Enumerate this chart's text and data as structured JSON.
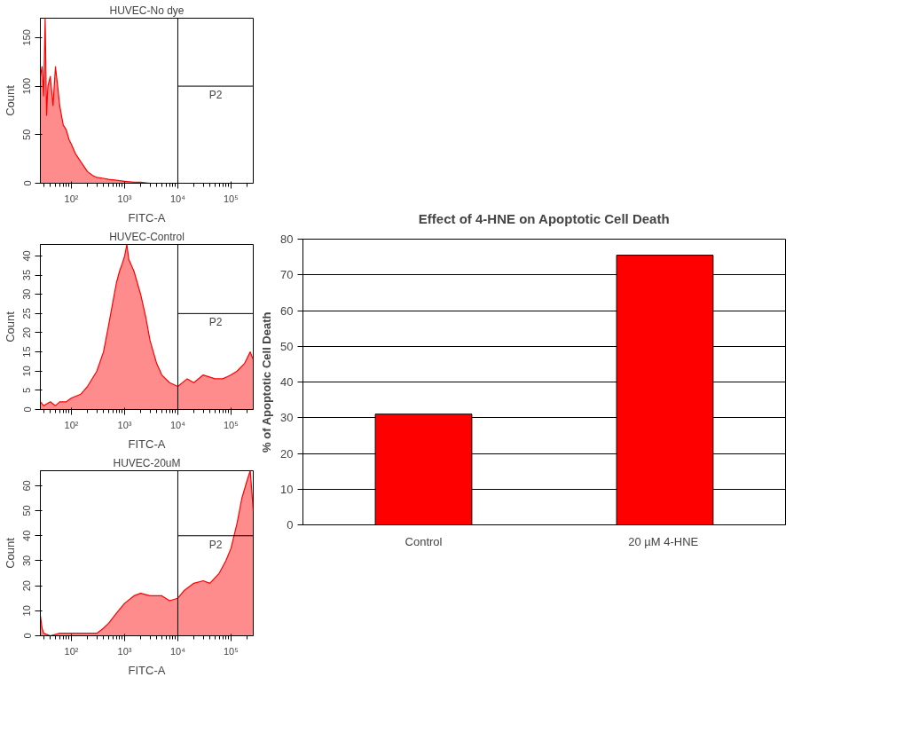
{
  "chart_data": [
    {
      "type": "area",
      "title": "HUVEC-No dye",
      "xlabel": "FITC-A",
      "ylabel": "Count",
      "log": "x",
      "color": "#ff0000",
      "x": [
        26,
        28,
        30,
        32,
        34,
        36,
        40,
        45,
        50,
        55,
        60,
        70,
        80,
        90,
        100,
        120,
        150,
        200,
        250,
        300,
        400,
        500,
        700,
        1000,
        1500,
        2000,
        3000,
        5000,
        10000,
        262144
      ],
      "values": [
        110,
        120,
        90,
        170,
        70,
        100,
        110,
        80,
        120,
        100,
        80,
        60,
        55,
        45,
        40,
        30,
        22,
        12,
        8,
        6,
        5,
        4,
        3,
        2,
        1,
        1,
        0,
        0,
        0,
        0
      ],
      "xlim": [
        26,
        262144
      ],
      "ylim": [
        0,
        170
      ],
      "yticks": [
        0,
        50,
        100,
        150
      ],
      "xticks": [
        {
          "value": 30,
          "label": null
        },
        {
          "value": 40,
          "label": null
        },
        {
          "value": 50,
          "label": null
        },
        {
          "value": 60,
          "label": null
        },
        {
          "value": 70,
          "label": null
        },
        {
          "value": 80,
          "label": null
        },
        {
          "value": 90,
          "label": null
        },
        {
          "value": 100,
          "label": "10²"
        },
        {
          "value": 200,
          "label": null
        },
        {
          "value": 300,
          "label": null
        },
        {
          "value": 400,
          "label": null
        },
        {
          "value": 500,
          "label": null
        },
        {
          "value": 600,
          "label": null
        },
        {
          "value": 700,
          "label": null
        },
        {
          "value": 800,
          "label": null
        },
        {
          "value": 900,
          "label": null
        },
        {
          "value": 1000,
          "label": "10³"
        },
        {
          "value": 2000,
          "label": null
        },
        {
          "value": 3000,
          "label": null
        },
        {
          "value": 4000,
          "label": null
        },
        {
          "value": 5000,
          "label": null
        },
        {
          "value": 6000,
          "label": null
        },
        {
          "value": 7000,
          "label": null
        },
        {
          "value": 8000,
          "label": null
        },
        {
          "value": 9000,
          "label": null
        },
        {
          "value": 10000,
          "label": "10⁴"
        },
        {
          "value": 20000,
          "label": null
        },
        {
          "value": 30000,
          "label": null
        },
        {
          "value": 40000,
          "label": null
        },
        {
          "value": 50000,
          "label": null
        },
        {
          "value": 60000,
          "label": null
        },
        {
          "value": 70000,
          "label": null
        },
        {
          "value": 80000,
          "label": null
        },
        {
          "value": 90000,
          "label": null
        },
        {
          "value": 100000,
          "label": "10⁵"
        },
        {
          "value": 200000,
          "label": null
        }
      ],
      "ref_lines": [
        {
          "axis": "x",
          "value": 10000
        },
        {
          "axis": "y",
          "value": 100,
          "label": "P2"
        }
      ]
    },
    {
      "type": "area",
      "title": "HUVEC-Control",
      "xlabel": "FITC-A",
      "ylabel": "Count",
      "log": "x",
      "color": "#ff0000",
      "x": [
        26,
        30,
        40,
        50,
        60,
        80,
        100,
        150,
        200,
        300,
        400,
        500,
        600,
        700,
        800,
        900,
        1000,
        1100,
        1200,
        1300,
        1500,
        2000,
        2500,
        3000,
        4000,
        5000,
        7000,
        10000,
        15000,
        20000,
        30000,
        50000,
        70000,
        100000,
        130000,
        180000,
        230000,
        262144
      ],
      "values": [
        2,
        1,
        2,
        1,
        2,
        2,
        3,
        4,
        6,
        10,
        15,
        22,
        28,
        33,
        36,
        38,
        40,
        43,
        39,
        38,
        36,
        30,
        24,
        18,
        12,
        9,
        7,
        6,
        8,
        7,
        9,
        8,
        8,
        9,
        10,
        12,
        15,
        13
      ],
      "xlim": [
        26,
        262144
      ],
      "ylim": [
        0,
        43
      ],
      "yticks": [
        0,
        5,
        10,
        15,
        20,
        25,
        30,
        35,
        40
      ],
      "xticks": [
        {
          "value": 30,
          "label": null
        },
        {
          "value": 40,
          "label": null
        },
        {
          "value": 50,
          "label": null
        },
        {
          "value": 60,
          "label": null
        },
        {
          "value": 70,
          "label": null
        },
        {
          "value": 80,
          "label": null
        },
        {
          "value": 90,
          "label": null
        },
        {
          "value": 100,
          "label": "10²"
        },
        {
          "value": 200,
          "label": null
        },
        {
          "value": 300,
          "label": null
        },
        {
          "value": 400,
          "label": null
        },
        {
          "value": 500,
          "label": null
        },
        {
          "value": 600,
          "label": null
        },
        {
          "value": 700,
          "label": null
        },
        {
          "value": 800,
          "label": null
        },
        {
          "value": 900,
          "label": null
        },
        {
          "value": 1000,
          "label": "10³"
        },
        {
          "value": 2000,
          "label": null
        },
        {
          "value": 3000,
          "label": null
        },
        {
          "value": 4000,
          "label": null
        },
        {
          "value": 5000,
          "label": null
        },
        {
          "value": 6000,
          "label": null
        },
        {
          "value": 7000,
          "label": null
        },
        {
          "value": 8000,
          "label": null
        },
        {
          "value": 9000,
          "label": null
        },
        {
          "value": 10000,
          "label": "10⁴"
        },
        {
          "value": 20000,
          "label": null
        },
        {
          "value": 30000,
          "label": null
        },
        {
          "value": 40000,
          "label": null
        },
        {
          "value": 50000,
          "label": null
        },
        {
          "value": 60000,
          "label": null
        },
        {
          "value": 70000,
          "label": null
        },
        {
          "value": 80000,
          "label": null
        },
        {
          "value": 90000,
          "label": null
        },
        {
          "value": 100000,
          "label": "10⁵"
        },
        {
          "value": 200000,
          "label": null
        }
      ],
      "ref_lines": [
        {
          "axis": "x",
          "value": 10000
        },
        {
          "axis": "y",
          "value": 25,
          "label": "P2"
        }
      ]
    },
    {
      "type": "area",
      "title": "HUVEC-20uM",
      "xlabel": "FITC-A",
      "ylabel": "Count",
      "log": "x",
      "color": "#ff0000",
      "x": [
        26,
        28,
        30,
        40,
        60,
        100,
        200,
        300,
        400,
        500,
        700,
        1000,
        1500,
        2000,
        3000,
        5000,
        7000,
        10000,
        13000,
        20000,
        30000,
        40000,
        60000,
        80000,
        100000,
        130000,
        160000,
        200000,
        230000,
        262144
      ],
      "values": [
        8,
        3,
        1,
        0,
        1,
        1,
        1,
        1,
        3,
        5,
        9,
        13,
        16,
        17,
        16,
        16,
        14,
        15,
        18,
        21,
        22,
        21,
        25,
        30,
        35,
        45,
        55,
        62,
        66,
        50
      ],
      "xlim": [
        26,
        262144
      ],
      "ylim": [
        0,
        66
      ],
      "yticks": [
        0,
        10,
        20,
        30,
        40,
        50,
        60
      ],
      "xticks": [
        {
          "value": 30,
          "label": null
        },
        {
          "value": 40,
          "label": null
        },
        {
          "value": 50,
          "label": null
        },
        {
          "value": 60,
          "label": null
        },
        {
          "value": 70,
          "label": null
        },
        {
          "value": 80,
          "label": null
        },
        {
          "value": 90,
          "label": null
        },
        {
          "value": 100,
          "label": "10²"
        },
        {
          "value": 200,
          "label": null
        },
        {
          "value": 300,
          "label": null
        },
        {
          "value": 400,
          "label": null
        },
        {
          "value": 500,
          "label": null
        },
        {
          "value": 600,
          "label": null
        },
        {
          "value": 700,
          "label": null
        },
        {
          "value": 800,
          "label": null
        },
        {
          "value": 900,
          "label": null
        },
        {
          "value": 1000,
          "label": "10³"
        },
        {
          "value": 2000,
          "label": null
        },
        {
          "value": 3000,
          "label": null
        },
        {
          "value": 4000,
          "label": null
        },
        {
          "value": 5000,
          "label": null
        },
        {
          "value": 6000,
          "label": null
        },
        {
          "value": 7000,
          "label": null
        },
        {
          "value": 8000,
          "label": null
        },
        {
          "value": 9000,
          "label": null
        },
        {
          "value": 10000,
          "label": "10⁴"
        },
        {
          "value": 20000,
          "label": null
        },
        {
          "value": 30000,
          "label": null
        },
        {
          "value": 40000,
          "label": null
        },
        {
          "value": 50000,
          "label": null
        },
        {
          "value": 60000,
          "label": null
        },
        {
          "value": 70000,
          "label": null
        },
        {
          "value": 80000,
          "label": null
        },
        {
          "value": 90000,
          "label": null
        },
        {
          "value": 100000,
          "label": "10⁵"
        },
        {
          "value": 200000,
          "label": null
        }
      ],
      "ref_lines": [
        {
          "axis": "x",
          "value": 10000
        },
        {
          "axis": "y",
          "value": 40,
          "label": "P2"
        }
      ]
    },
    {
      "type": "bar",
      "title": "Effect of 4-HNE on Apoptotic Cell Death",
      "ylabel": "% of Apoptotic Cell Death",
      "categories": [
        "Control",
        "20 µM  4-HNE"
      ],
      "values": [
        31,
        75.5
      ],
      "color": "#ff0000",
      "ylim": [
        0,
        80
      ],
      "yticks": [
        0,
        10,
        20,
        30,
        40,
        50,
        60,
        70,
        80
      ],
      "grid": "y"
    }
  ]
}
